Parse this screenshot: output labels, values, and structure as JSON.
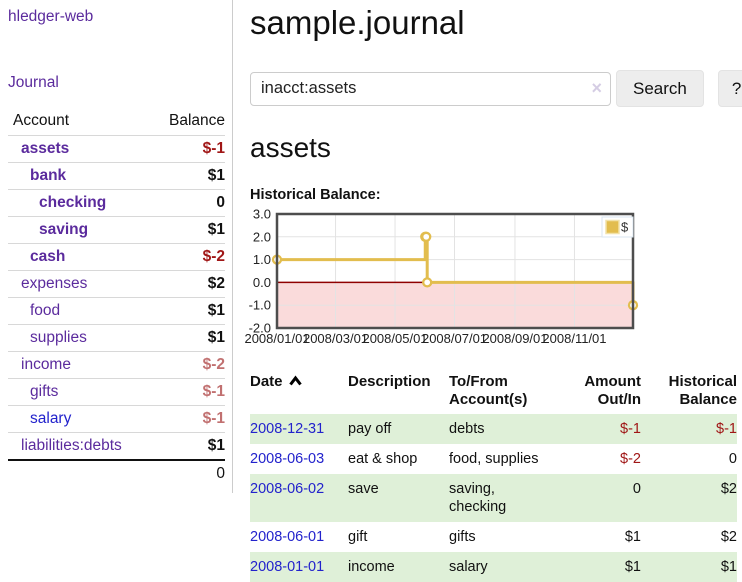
{
  "sidebar": {
    "app_title": "hledger-web",
    "nav": {
      "journal_label": "Journal"
    },
    "accounts_table": {
      "headers": {
        "account": "Account",
        "balance": "Balance"
      },
      "rows": [
        {
          "name": "assets",
          "balance": "$-1",
          "indent": 1,
          "bold": true,
          "balance_style": "negative"
        },
        {
          "name": "bank",
          "balance": "$1",
          "indent": 2,
          "bold": true,
          "balance_style": "normal"
        },
        {
          "name": "checking",
          "balance": "0",
          "indent": 3,
          "bold": true,
          "balance_style": "normal"
        },
        {
          "name": "saving",
          "balance": "$1",
          "indent": 3,
          "bold": true,
          "balance_style": "normal"
        },
        {
          "name": "cash",
          "balance": "$-2",
          "indent": 2,
          "bold": true,
          "balance_style": "negative"
        },
        {
          "name": "expenses",
          "balance": "$2",
          "indent": 1,
          "bold": false,
          "balance_style": "normal"
        },
        {
          "name": "food",
          "balance": "$1",
          "indent": 2,
          "bold": false,
          "balance_style": "normal"
        },
        {
          "name": "supplies",
          "balance": "$1",
          "indent": 2,
          "bold": false,
          "balance_style": "normal"
        },
        {
          "name": "income",
          "balance": "$-2",
          "indent": 1,
          "bold": false,
          "balance_style": "negative-muted"
        },
        {
          "name": "gifts",
          "balance": "$-1",
          "indent": 2,
          "bold": false,
          "balance_style": "negative-muted"
        },
        {
          "name": "salary",
          "balance": "$-1",
          "indent": 2,
          "bold": false,
          "balance_style": "negative-muted"
        },
        {
          "name": "liabilities:debts",
          "balance": "$1",
          "indent": 1,
          "bold": false,
          "balance_style": "normal"
        }
      ],
      "total": "0"
    }
  },
  "main": {
    "page_title": "sample.journal",
    "search": {
      "value": "inacct:assets",
      "clear_icon": "×",
      "button_label": "Search",
      "help_label": "?"
    },
    "account_heading": "assets",
    "chart_title": "Historical Balance:",
    "register_table": {
      "headers": {
        "date": "Date",
        "description": "Description",
        "accounts": "To/From Account(s)",
        "amount": "Amount Out/In",
        "balance": "Historical Balance"
      },
      "sort": {
        "column": "date",
        "direction": "ascending"
      },
      "rows": [
        {
          "date": "2008-12-31",
          "description": "pay off",
          "accounts": "debts",
          "amount": "$-1",
          "balance": "$-1"
        },
        {
          "date": "2008-06-03",
          "description": "eat & shop",
          "accounts": "food, supplies",
          "amount": "$-2",
          "balance": "0"
        },
        {
          "date": "2008-06-02",
          "description": "save",
          "accounts": "saving, checking",
          "amount": "0",
          "balance": "$2"
        },
        {
          "date": "2008-06-01",
          "description": "gift",
          "accounts": "gifts",
          "amount": "$1",
          "balance": "$2"
        },
        {
          "date": "2008-01-01",
          "description": "income",
          "accounts": "salary",
          "amount": "$1",
          "balance": "$1"
        }
      ]
    }
  },
  "chart_data": {
    "type": "line",
    "step": true,
    "title": "Historical Balance:",
    "series": [
      {
        "name": "$",
        "color": "#e2bd4e",
        "points": [
          [
            "2008-01-01",
            1
          ],
          [
            "2008-06-01",
            2
          ],
          [
            "2008-06-02",
            2
          ],
          [
            "2008-06-03",
            0
          ],
          [
            "2008-12-31",
            -1
          ]
        ]
      }
    ],
    "xlim": [
      "2008-01-01",
      "2008-12-31"
    ],
    "ylim": [
      -2,
      3
    ],
    "yticks": [
      3,
      2,
      1,
      0,
      -1,
      -2
    ],
    "xticks": [
      "2008/01/01",
      "2008/03/01",
      "2008/05/01",
      "2008/07/01",
      "2008/09/01",
      "2008/11/01"
    ],
    "legend_position": "top-right",
    "grid": true,
    "negative_region_color": "#fadbdb",
    "zero_line_color": "#8f0000"
  },
  "colors": {
    "link-purple": "#5b2b9d",
    "link-blue": "#2222cc",
    "neg-strong": "#a01616",
    "neg-soft": "#c17070",
    "stripe-green": "#dff0d8",
    "chart-gold": "#e2bd4e",
    "chart-pink": "#fadbdb",
    "chart-zero": "#8f0000",
    "chart-border": "#4d4d4d",
    "button-bg": "#ededed",
    "border-gray": "#cccccc",
    "clear-x": "#d5cde4"
  }
}
